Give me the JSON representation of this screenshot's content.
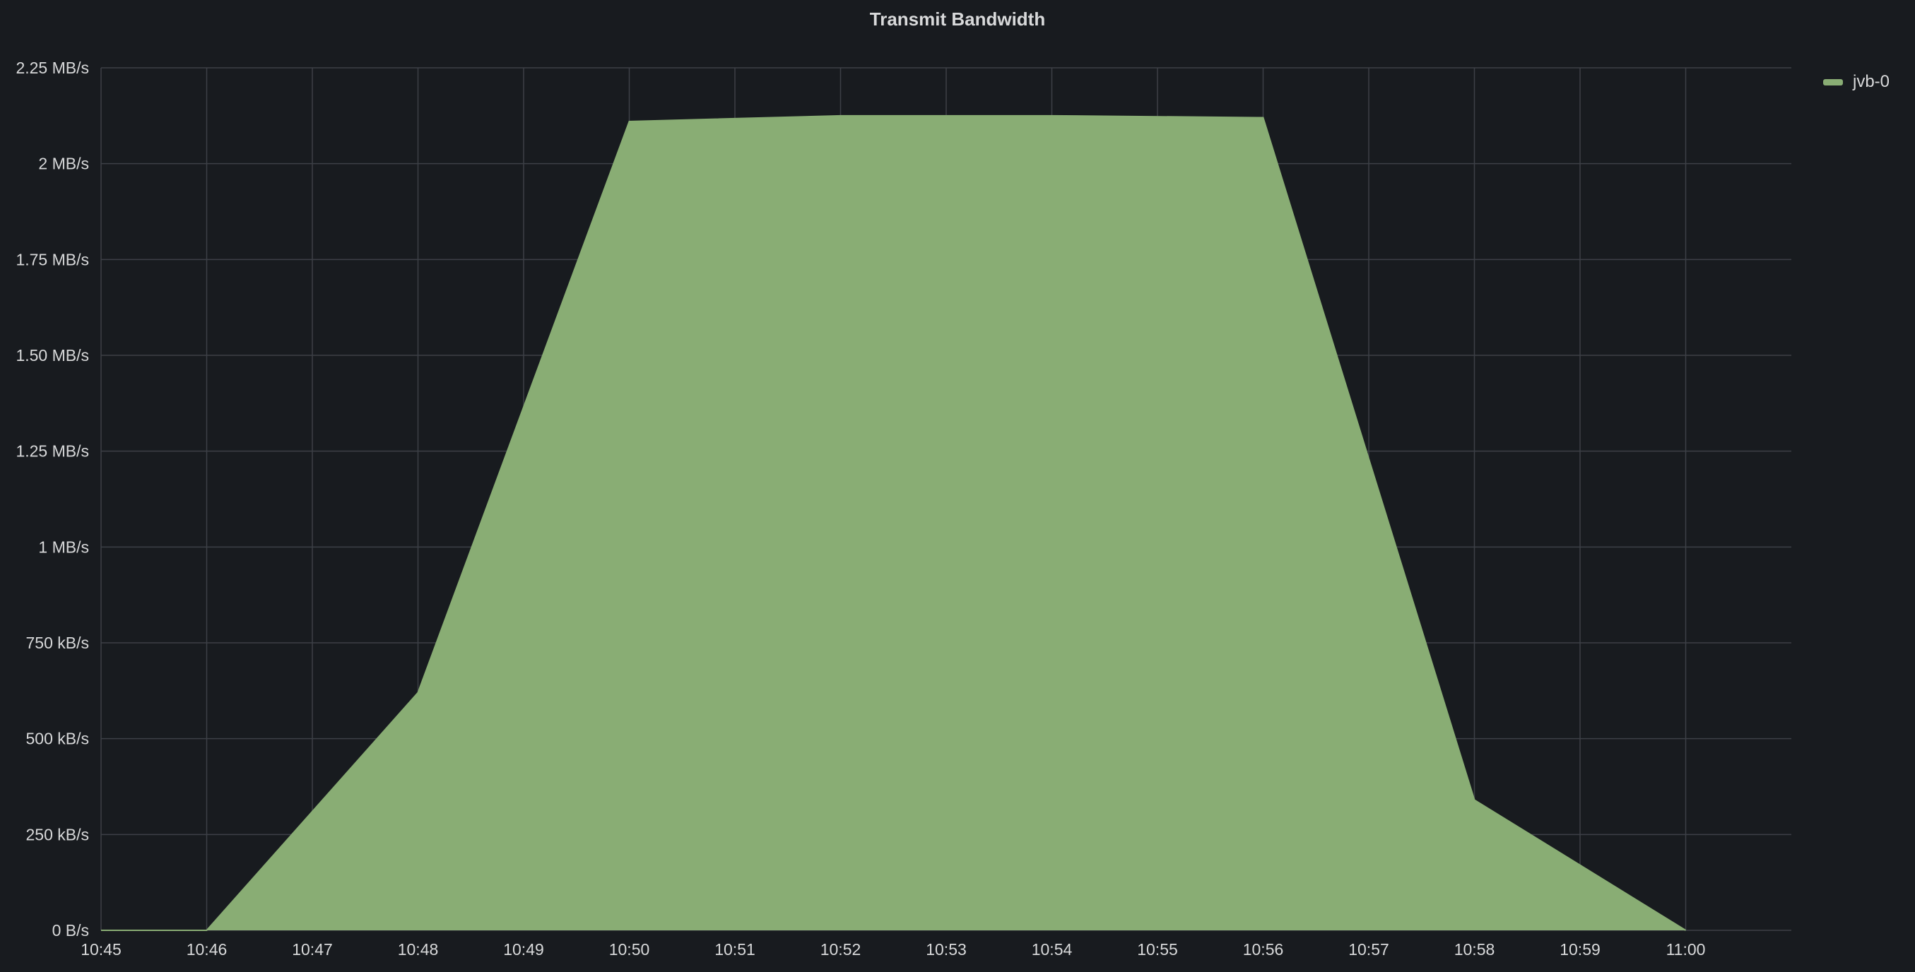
{
  "panel": {
    "title": "Transmit Bandwidth"
  },
  "colors": {
    "background": "#181b1f",
    "series": "#89ad74",
    "grid": "#3d4047",
    "text": "#d8d9da"
  },
  "chart_data": {
    "type": "area",
    "title": "Transmit Bandwidth",
    "xlabel": "",
    "ylabel": "",
    "x_ticks": [
      "10:45",
      "10:46",
      "10:47",
      "10:48",
      "10:49",
      "10:50",
      "10:51",
      "10:52",
      "10:53",
      "10:54",
      "10:55",
      "10:56",
      "10:57",
      "10:58",
      "10:59",
      "11:00"
    ],
    "xlim": [
      "10:45",
      "11:01"
    ],
    "y_ticks": [
      {
        "value": 0,
        "label": "0 B/s"
      },
      {
        "value": 250,
        "label": "250 kB/s"
      },
      {
        "value": 500,
        "label": "500 kB/s"
      },
      {
        "value": 750,
        "label": "750 kB/s"
      },
      {
        "value": 1000,
        "label": "1 MB/s"
      },
      {
        "value": 1250,
        "label": "1.25 MB/s"
      },
      {
        "value": 1500,
        "label": "1.50 MB/s"
      },
      {
        "value": 1750,
        "label": "1.75 MB/s"
      },
      {
        "value": 2000,
        "label": "2 MB/s"
      },
      {
        "value": 2250,
        "label": "2.25 MB/s"
      }
    ],
    "ylim": [
      0,
      2250
    ],
    "y_unit": "kB/s",
    "grid": true,
    "legend_position": "top-right",
    "series": [
      {
        "name": "jvb-0",
        "color": "#89ad74",
        "points": [
          {
            "x": "10:45",
            "y": 0
          },
          {
            "x": "10:46",
            "y": 0
          },
          {
            "x": "10:48",
            "y": 620
          },
          {
            "x": "10:50",
            "y": 2110
          },
          {
            "x": "10:52",
            "y": 2125
          },
          {
            "x": "10:54",
            "y": 2125
          },
          {
            "x": "10:56",
            "y": 2120
          },
          {
            "x": "10:58",
            "y": 340
          },
          {
            "x": "11:00",
            "y": 0
          }
        ]
      }
    ]
  }
}
